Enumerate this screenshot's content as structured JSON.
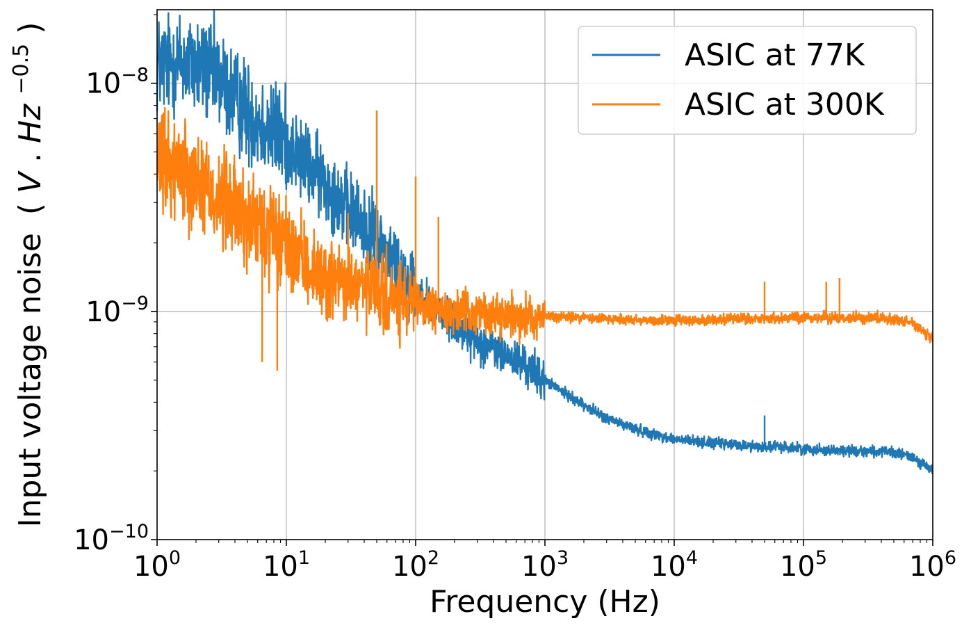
{
  "chart_data": {
    "type": "line",
    "title": "",
    "xlabel": "Frequency (Hz)",
    "ylabel": "Input voltage noise",
    "ylabel_unit_parts": [
      "(",
      "V",
      ". ",
      "Hz",
      "−0.5",
      ")"
    ],
    "x_scale": "log",
    "y_scale": "log",
    "xlim": [
      1,
      1000000
    ],
    "ylim": [
      1e-10,
      2.1e-08
    ],
    "x_ticks": [
      {
        "value": 1,
        "base": "10",
        "exp": "0"
      },
      {
        "value": 10,
        "base": "10",
        "exp": "1"
      },
      {
        "value": 100,
        "base": "10",
        "exp": "2"
      },
      {
        "value": 1000,
        "base": "10",
        "exp": "3"
      },
      {
        "value": 10000,
        "base": "10",
        "exp": "4"
      },
      {
        "value": 100000,
        "base": "10",
        "exp": "5"
      },
      {
        "value": 1000000,
        "base": "10",
        "exp": "6"
      }
    ],
    "y_ticks": [
      {
        "value": 1e-10,
        "base": "10",
        "exp": "−10"
      },
      {
        "value": 1e-09,
        "base": "10",
        "exp": "−9"
      },
      {
        "value": 1e-08,
        "base": "10",
        "exp": "−8"
      }
    ],
    "grid": true,
    "legend_position": "top-right",
    "series": [
      {
        "name": "ASIC at 77K",
        "color": "#1f77b4",
        "x": [
          1,
          1.5,
          2,
          3,
          4,
          5,
          7,
          10,
          15,
          20,
          30,
          50,
          70,
          100,
          150,
          200,
          300,
          500,
          700,
          1000,
          1500,
          2000,
          3000,
          5000,
          7000,
          10000,
          20000,
          30000,
          50000,
          70000,
          100000,
          200000,
          300000,
          500000,
          700000,
          1000000
        ],
        "y": [
          1.2e-08,
          1.25e-08,
          1.2e-08,
          1.05e-08,
          8.5e-09,
          7.5e-09,
          6.5e-09,
          5.5e-09,
          4.3e-09,
          3.7e-09,
          2.8e-09,
          2.1e-09,
          1.6e-09,
          1.25e-09,
          1e-09,
          8.7e-10,
          7.5e-10,
          6.4e-10,
          5.8e-10,
          5e-10,
          4.3e-10,
          3.9e-10,
          3.4e-10,
          3.05e-10,
          2.9e-10,
          2.75e-10,
          2.65e-10,
          2.6e-10,
          2.55e-10,
          2.55e-10,
          2.5e-10,
          2.45e-10,
          2.45e-10,
          2.4e-10,
          2.3e-10,
          2e-10
        ],
        "spikes": [
          {
            "x": 50000,
            "y": 3.5e-10
          },
          {
            "x": 1.1,
            "y": 1.6e-08
          },
          {
            "x": 2.4,
            "y": 1.7e-08
          }
        ]
      },
      {
        "name": "ASIC at 300K",
        "color": "#ff7f0e",
        "x": [
          1,
          1.5,
          2,
          3,
          5,
          7,
          10,
          15,
          20,
          30,
          50,
          70,
          100,
          150,
          200,
          300,
          500,
          700,
          1000,
          2000,
          3000,
          5000,
          10000,
          20000,
          50000,
          100000,
          200000,
          300000,
          500000,
          700000,
          1000000
        ],
        "y": [
          4.3e-09,
          4.4e-09,
          3.8e-09,
          3.1e-09,
          2.5e-09,
          2.2e-09,
          1.9e-09,
          1.55e-09,
          1.4e-09,
          1.3e-09,
          1.2e-09,
          1.1e-09,
          1.05e-09,
          1.02e-09,
          1e-09,
          9.8e-10,
          9.6e-10,
          9.5e-10,
          9.5e-10,
          9.4e-10,
          9.3e-10,
          9.2e-10,
          9.1e-10,
          9.2e-10,
          9.3e-10,
          9.4e-10,
          9.4e-10,
          9.4e-10,
          9.3e-10,
          8.9e-10,
          7.5e-10
        ],
        "spikes": [
          {
            "x": 50,
            "y": 7.6e-09
          },
          {
            "x": 100,
            "y": 3.9e-09
          },
          {
            "x": 150,
            "y": 2.6e-09
          },
          {
            "x": 30,
            "y": 2.7e-09
          },
          {
            "x": 50000,
            "y": 1.35e-09
          },
          {
            "x": 150000,
            "y": 1.35e-09
          },
          {
            "x": 190000,
            "y": 1.4e-09
          },
          {
            "x": 6.5,
            "y": 6e-10
          },
          {
            "x": 8.5,
            "y": 5.5e-10
          }
        ]
      }
    ]
  }
}
